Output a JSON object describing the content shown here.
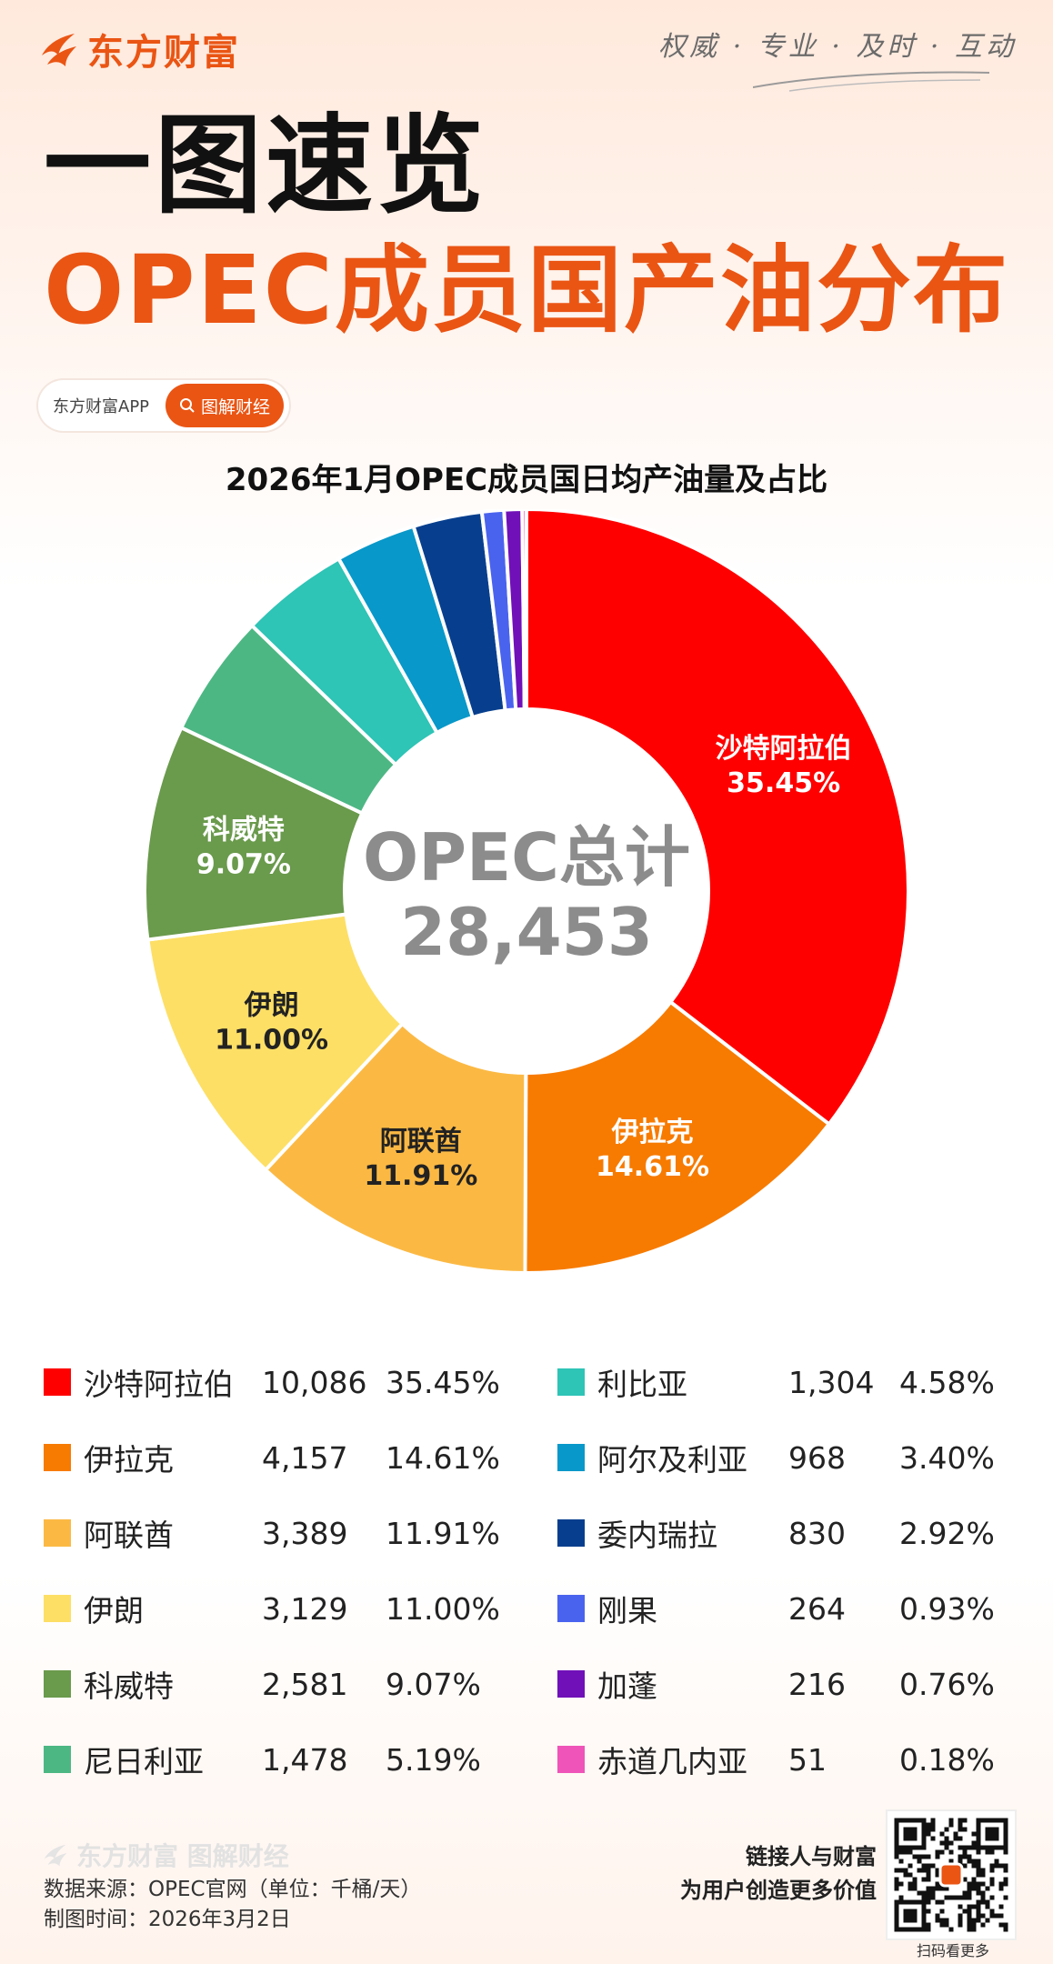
{
  "brand": {
    "name": "东方财富",
    "slogan": "权威 · 专业 · 及时 · 互动",
    "app": "东方财富APP",
    "tag": "图解财经"
  },
  "headline": {
    "line1": "一图速览",
    "line2": "OPEC成员国产油分布"
  },
  "chart_data": {
    "type": "pie",
    "title": "2026年1月OPEC成员国日均产油量及占比",
    "center_label": "OPEC总计",
    "center_value": "28,453",
    "slices": [
      {
        "name": "沙特阿拉伯",
        "value": 10086,
        "value_text": "10,086",
        "percent": 35.45,
        "percent_text": "35.45%",
        "color": "#ff0000",
        "labeled": true,
        "label_color": "#ffffff"
      },
      {
        "name": "伊拉克",
        "value": 4157,
        "value_text": "4,157",
        "percent": 14.61,
        "percent_text": "14.61%",
        "color": "#f77b00",
        "labeled": true,
        "label_color": "#ffffff"
      },
      {
        "name": "阿联酋",
        "value": 3389,
        "value_text": "3,389",
        "percent": 11.91,
        "percent_text": "11.91%",
        "color": "#fbb944",
        "labeled": true,
        "label_color": "#222222"
      },
      {
        "name": "伊朗",
        "value": 3129,
        "value_text": "3,129",
        "percent": 11.0,
        "percent_text": "11.00%",
        "color": "#fddf66",
        "labeled": true,
        "label_color": "#222222"
      },
      {
        "name": "科威特",
        "value": 2581,
        "value_text": "2,581",
        "percent": 9.07,
        "percent_text": "9.07%",
        "color": "#6a9a4c",
        "labeled": true,
        "label_color": "#ffffff"
      },
      {
        "name": "尼日利亚",
        "value": 1478,
        "value_text": "1,478",
        "percent": 5.19,
        "percent_text": "5.19%",
        "color": "#4db784",
        "labeled": false
      },
      {
        "name": "利比亚",
        "value": 1304,
        "value_text": "1,304",
        "percent": 4.58,
        "percent_text": "4.58%",
        "color": "#2ec4b6",
        "labeled": false
      },
      {
        "name": "阿尔及利亚",
        "value": 968,
        "value_text": "968",
        "percent": 3.4,
        "percent_text": "3.40%",
        "color": "#0898c9",
        "labeled": false
      },
      {
        "name": "委内瑞拉",
        "value": 830,
        "value_text": "830",
        "percent": 2.92,
        "percent_text": "2.92%",
        "color": "#073f8e",
        "labeled": false
      },
      {
        "name": "刚果",
        "value": 264,
        "value_text": "264",
        "percent": 0.93,
        "percent_text": "0.93%",
        "color": "#4a63ee",
        "labeled": false
      },
      {
        "name": "加蓬",
        "value": 216,
        "value_text": "216",
        "percent": 0.76,
        "percent_text": "0.76%",
        "color": "#7010b8",
        "labeled": false
      },
      {
        "name": "赤道几内亚",
        "value": 51,
        "value_text": "51",
        "percent": 0.18,
        "percent_text": "0.18%",
        "color": "#ef55b8",
        "labeled": false
      }
    ]
  },
  "footer": {
    "brand": "东方财富 图解财经",
    "source": "数据来源：OPEC官网（单位：千桶/天）",
    "date": "制图时间：2026年3月2日",
    "tagline1": "链接人与财富",
    "tagline2": "为用户创造更多价值",
    "qr_caption": "扫码看更多"
  }
}
